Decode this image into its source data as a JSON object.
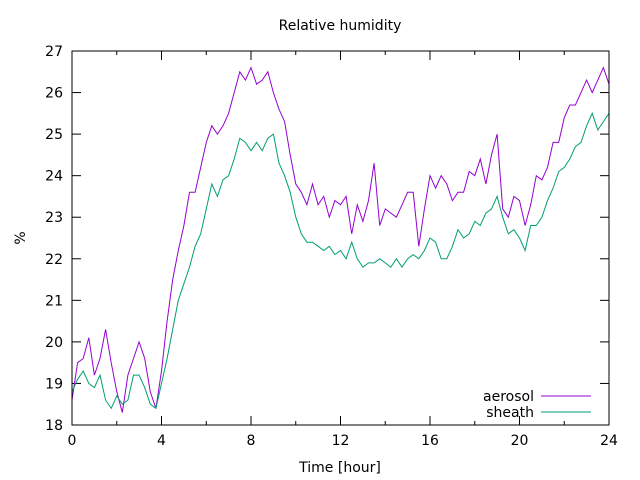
{
  "chart_data": {
    "type": "line",
    "title": "Relative humidity",
    "xlabel": "Time [hour]",
    "ylabel": "%",
    "xlim": [
      0,
      24
    ],
    "ylim": [
      18,
      27
    ],
    "xticks": [
      0,
      4,
      8,
      12,
      16,
      20,
      24
    ],
    "yticks": [
      18,
      19,
      20,
      21,
      22,
      23,
      24,
      25,
      26,
      27
    ],
    "grid": false,
    "legend_position": "bottom-right",
    "x_step": 0.25,
    "series": [
      {
        "name": "aerosol",
        "color": "#9400d3",
        "values": [
          18.6,
          19.5,
          19.6,
          20.1,
          19.2,
          19.6,
          20.3,
          19.5,
          18.8,
          18.3,
          19.2,
          19.6,
          20.0,
          19.6,
          18.8,
          18.4,
          19.3,
          20.5,
          21.5,
          22.2,
          22.8,
          23.6,
          23.6,
          24.2,
          24.8,
          25.2,
          25.0,
          25.2,
          25.5,
          26.0,
          26.5,
          26.3,
          26.6,
          26.2,
          26.3,
          26.5,
          26.0,
          25.6,
          25.3,
          24.5,
          23.8,
          23.6,
          23.3,
          23.8,
          23.3,
          23.5,
          23.0,
          23.4,
          23.3,
          23.5,
          22.6,
          23.3,
          22.9,
          23.4,
          24.3,
          22.8,
          23.2,
          23.1,
          23.0,
          23.3,
          23.6,
          23.6,
          22.3,
          23.2,
          24.0,
          23.7,
          24.0,
          23.8,
          23.4,
          23.6,
          23.6,
          24.1,
          24.0,
          24.4,
          23.8,
          24.5,
          25.0,
          23.2,
          23.0,
          23.5,
          23.4,
          22.8,
          23.3,
          24.0,
          23.9,
          24.2,
          24.8,
          24.8,
          25.4,
          25.7,
          25.7,
          26.0,
          26.3,
          26.0,
          26.3,
          26.6,
          26.2
        ]
      },
      {
        "name": "sheath",
        "color": "#009e73",
        "values": [
          18.8,
          19.1,
          19.3,
          19.0,
          18.9,
          19.2,
          18.6,
          18.4,
          18.7,
          18.5,
          18.6,
          19.2,
          19.2,
          18.9,
          18.5,
          18.4,
          19.0,
          19.6,
          20.3,
          21.0,
          21.4,
          21.8,
          22.3,
          22.6,
          23.2,
          23.8,
          23.5,
          23.9,
          24.0,
          24.4,
          24.9,
          24.8,
          24.6,
          24.8,
          24.6,
          24.9,
          25.0,
          24.3,
          24.0,
          23.6,
          23.0,
          22.6,
          22.4,
          22.4,
          22.3,
          22.2,
          22.3,
          22.1,
          22.2,
          22.0,
          22.4,
          22.0,
          21.8,
          21.9,
          21.9,
          22.0,
          21.9,
          21.8,
          22.0,
          21.8,
          22.0,
          22.1,
          22.0,
          22.2,
          22.5,
          22.4,
          22.0,
          22.0,
          22.3,
          22.7,
          22.5,
          22.6,
          22.9,
          22.8,
          23.1,
          23.2,
          23.5,
          23.0,
          22.6,
          22.7,
          22.5,
          22.2,
          22.8,
          22.8,
          23.0,
          23.4,
          23.7,
          24.1,
          24.2,
          24.4,
          24.7,
          24.8,
          25.2,
          25.5,
          25.1,
          25.3,
          25.5
        ]
      }
    ]
  }
}
